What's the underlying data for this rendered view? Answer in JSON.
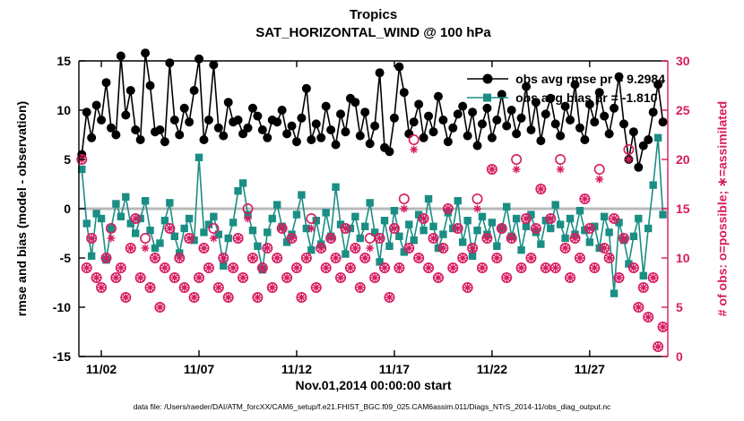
{
  "figure": {
    "title": "Tropics",
    "subtitle": "SAT_HORIZONTAL_WIND @ 100 hPa",
    "xlabel": "Nov.01,2014 00:00:00 start",
    "ylabel_left": "rmse and bias (model - observation)",
    "ylabel_right": "# of obs: o=possible; ∗=assimilated",
    "caption": "data file: /Users/raeder/DAI/ATM_forcXX/CAM6_setup/f.e21.FHIST_BGC.f09_025.CAM6assim.011/Diags_NTrS_2014-11/obs_diag_output.nc"
  },
  "legend": {
    "rmse_label": "obs avg rmse pr = 9.2984",
    "bias_label": "obs avg bias pr = -1.810"
  },
  "colors": {
    "rmse": "#000000",
    "bias": "#1a8e84",
    "obs": "#d81b60",
    "zero_line": "#b8b8b8"
  },
  "chart_data": {
    "type": "line",
    "title": "Tropics",
    "subtitle": "SAT_HORIZONTAL_WIND @ 100 hPa",
    "x_start_day": 0,
    "x_step_days": 0.25,
    "x_domain": [
      -0.15,
      30
    ],
    "x_ticks": {
      "days": [
        1,
        6,
        11,
        16,
        21,
        26
      ],
      "labels": [
        "11/02",
        "11/07",
        "11/12",
        "11/17",
        "11/22",
        "11/27"
      ]
    },
    "y_left": {
      "min": -15,
      "max": 15,
      "ticks": [
        -15,
        -10,
        -5,
        0,
        5,
        10,
        15
      ]
    },
    "y_right": {
      "min": 0,
      "max": 30,
      "ticks": [
        0,
        5,
        10,
        15,
        20,
        25,
        30
      ]
    },
    "series": [
      {
        "name": "obs avg bias",
        "axis": "left",
        "marker": "square",
        "line": true,
        "color": "#1a8e84",
        "values": [
          4.0,
          -1.5,
          -4.8,
          -0.5,
          -1.0,
          -5.2,
          -2.0,
          0.5,
          -0.8,
          1.2,
          -1.5,
          -2.5,
          -1.0,
          0.8,
          -2.2,
          -4.0,
          -3.5,
          -1.2,
          0.6,
          -2.8,
          -4.5,
          -2.0,
          -1.0,
          -3.2,
          5.2,
          -2.4,
          -1.6,
          -0.8,
          -2.6,
          -5.8,
          -3.0,
          -1.4,
          1.8,
          2.6,
          -0.6,
          -2.2,
          -3.8,
          -6.2,
          -2.4,
          -1.0,
          0.4,
          -1.8,
          -3.4,
          -2.6,
          -0.6,
          1.4,
          -2.0,
          -4.2,
          -1.2,
          -3.6,
          -0.4,
          -2.8,
          2.2,
          -1.6,
          -4.6,
          -2.0,
          -0.8,
          -3.0,
          -1.8,
          0.6,
          -2.4,
          -5.4,
          -1.2,
          -3.8,
          -0.2,
          -2.8,
          -4.4,
          -1.6,
          -3.2,
          -0.6,
          -2.2,
          1.0,
          -1.8,
          -4.0,
          -2.6,
          -0.4,
          -2.0,
          0.8,
          -3.4,
          -1.2,
          -4.8,
          -2.2,
          -0.8,
          -2.6,
          -1.4,
          -3.8,
          -2.0,
          0.2,
          -2.8,
          -1.0,
          -4.2,
          -1.8,
          -0.6,
          -2.4,
          -3.6,
          -1.2,
          -2.0,
          0.4,
          -1.6,
          -3.0,
          -1.0,
          -2.6,
          -0.2,
          -2.2,
          -3.4,
          -1.8,
          -4.0,
          -0.8,
          -2.4,
          -8.6,
          -1.4,
          -3.2,
          -5.6,
          -2.8,
          -1.0,
          -6.8,
          -2.0,
          2.4,
          7.2,
          -0.6
        ]
      },
      {
        "name": "obs avg rmse",
        "axis": "left",
        "marker": "circle",
        "line": true,
        "color": "#000000",
        "values": [
          5.5,
          9.8,
          7.2,
          10.5,
          9.0,
          12.8,
          8.2,
          7.5,
          15.5,
          9.5,
          12.0,
          8.0,
          7.0,
          15.8,
          12.5,
          7.8,
          8.0,
          6.8,
          14.8,
          9.0,
          7.5,
          10.2,
          8.8,
          12.0,
          15.2,
          7.0,
          9.0,
          14.6,
          8.2,
          7.4,
          10.8,
          8.8,
          9.0,
          7.6,
          8.2,
          10.2,
          9.4,
          8.0,
          7.2,
          9.0,
          8.8,
          10.0,
          7.6,
          8.4,
          6.8,
          9.2,
          12.2,
          7.0,
          8.6,
          7.2,
          10.4,
          8.0,
          6.5,
          9.6,
          7.8,
          11.2,
          10.8,
          7.4,
          9.8,
          6.6,
          8.4,
          13.8,
          6.2,
          5.8,
          9.2,
          14.4,
          11.8,
          7.6,
          8.8,
          10.6,
          7.2,
          9.4,
          7.8,
          11.4,
          9.0,
          6.8,
          8.2,
          9.6,
          10.4,
          7.4,
          9.8,
          6.4,
          8.6,
          10.2,
          7.2,
          9.0,
          11.6,
          8.4,
          10.0,
          7.6,
          9.2,
          12.4,
          8.0,
          10.8,
          6.9,
          9.6,
          11.2,
          8.6,
          7.4,
          10.4,
          9.0,
          12.6,
          8.2,
          7.0,
          10.6,
          8.8,
          11.8,
          9.4,
          7.6,
          10.2,
          13.4,
          8.6,
          5.0,
          7.8,
          4.2,
          6.4,
          7.0,
          9.8,
          12.6,
          8.8
        ]
      },
      {
        "name": "# obs possible",
        "axis": "right",
        "marker": "open-circle",
        "line": false,
        "color": "#d81b60",
        "values": [
          20,
          9,
          12,
          8,
          7,
          10,
          13,
          8,
          9,
          6,
          11,
          14,
          8,
          12,
          7,
          10,
          5,
          9,
          13,
          8,
          10,
          7,
          12,
          6,
          8,
          11,
          9,
          13,
          7,
          10,
          6,
          9,
          12,
          8,
          15,
          10,
          6,
          9,
          11,
          7,
          10,
          13,
          8,
          12,
          9,
          6,
          10,
          14,
          7,
          11,
          9,
          12,
          10,
          8,
          13,
          9,
          11,
          7,
          10,
          12,
          8,
          12,
          9,
          6,
          13,
          9,
          16,
          11,
          22,
          10,
          14,
          9,
          12,
          8,
          11,
          15,
          9,
          13,
          10,
          7,
          11,
          16,
          9,
          12,
          19,
          10,
          13,
          8,
          12,
          20,
          9,
          14,
          10,
          13,
          17,
          9,
          14,
          9,
          20,
          11,
          8,
          12,
          10,
          16,
          13,
          9,
          19,
          11,
          10,
          14,
          8,
          12,
          21,
          9,
          5,
          7,
          4,
          8,
          1,
          3
        ]
      },
      {
        "name": "# obs assimilated",
        "axis": "right",
        "marker": "asterisk",
        "line": false,
        "color": "#d81b60",
        "values": [
          20,
          9,
          12,
          8,
          7,
          10,
          12,
          8,
          9,
          6,
          11,
          14,
          8,
          11,
          7,
          10,
          5,
          9,
          13,
          8,
          10,
          7,
          12,
          6,
          8,
          11,
          9,
          12,
          7,
          10,
          6,
          9,
          12,
          8,
          14,
          10,
          6,
          9,
          11,
          7,
          10,
          13,
          8,
          12,
          9,
          6,
          10,
          13,
          7,
          11,
          9,
          12,
          10,
          8,
          13,
          9,
          11,
          7,
          10,
          11,
          8,
          12,
          9,
          6,
          13,
          9,
          15,
          11,
          21,
          10,
          14,
          9,
          12,
          8,
          11,
          15,
          9,
          13,
          10,
          7,
          11,
          15,
          9,
          12,
          19,
          10,
          13,
          8,
          12,
          19,
          9,
          14,
          10,
          13,
          17,
          9,
          14,
          9,
          19,
          11,
          8,
          12,
          10,
          16,
          13,
          9,
          18,
          11,
          10,
          14,
          8,
          12,
          20,
          9,
          5,
          7,
          4,
          8,
          1,
          3
        ]
      }
    ]
  }
}
